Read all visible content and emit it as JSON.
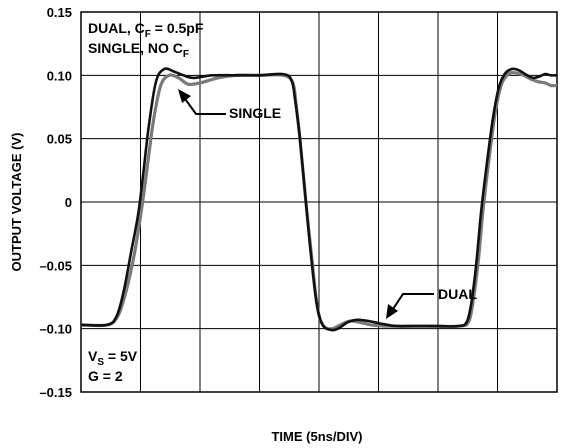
{
  "chart_data": {
    "type": "line",
    "title": "",
    "xlabel": "TIME (5ns/DIV)",
    "ylabel": "OUTPUT VOLTAGE (V)",
    "ylim": [
      -0.15,
      0.15
    ],
    "xlim": [
      0,
      40
    ],
    "x_unit_per_div": "5ns",
    "yticks": [
      "0.15",
      "0.10",
      "0.05",
      "0",
      "–0.05",
      "–0.10",
      "–0.15"
    ],
    "ytick_values": [
      0.15,
      0.1,
      0.05,
      0,
      -0.05,
      -0.1,
      -0.15
    ],
    "grid": true,
    "colors": {
      "dual": "#111111",
      "single": "#7a7a7a"
    },
    "series": [
      {
        "name": "DUAL",
        "x": [
          0,
          2.2,
          3.0,
          3.6,
          4.2,
          4.8,
          5.2,
          5.7,
          6.3,
          7.0,
          7.8,
          8.6,
          9.5,
          11,
          13,
          15,
          17,
          17.7,
          18.0,
          18.4,
          18.8,
          19.3,
          19.8,
          20.3,
          21.0,
          21.6,
          22.4,
          23.2,
          24.2,
          25.2,
          26.5,
          28,
          30,
          31.7,
          32.4,
          32.8,
          33.2,
          33.6,
          34.1,
          34.6,
          35.1,
          35.6,
          36.2,
          36.8,
          37.5,
          38.0,
          38.5,
          39.0,
          39.5,
          40
        ],
        "y": [
          -0.097,
          -0.097,
          -0.09,
          -0.07,
          -0.04,
          -0.01,
          0.02,
          0.06,
          0.095,
          0.105,
          0.103,
          0.1,
          0.098,
          0.1,
          0.1,
          0.1,
          0.101,
          0.096,
          0.08,
          0.05,
          0.01,
          -0.04,
          -0.08,
          -0.097,
          -0.101,
          -0.1,
          -0.095,
          -0.093,
          -0.094,
          -0.096,
          -0.098,
          -0.098,
          -0.098,
          -0.098,
          -0.095,
          -0.08,
          -0.05,
          -0.01,
          0.03,
          0.065,
          0.09,
          0.101,
          0.105,
          0.104,
          0.1,
          0.098,
          0.099,
          0.101,
          0.1,
          0.1
        ]
      },
      {
        "name": "SINGLE",
        "x": [
          0,
          2.2,
          3.1,
          3.8,
          4.5,
          5.1,
          5.6,
          6.1,
          6.7,
          7.4,
          8.2,
          9.0,
          10,
          11.5,
          13,
          15,
          17,
          17.8,
          18.1,
          18.5,
          18.9,
          19.4,
          19.9,
          20.4,
          21.1,
          21.8,
          22.6,
          23.4,
          24.4,
          25.6,
          27,
          29,
          31.8,
          32.6,
          33.0,
          33.4,
          33.8,
          34.3,
          34.8,
          35.3,
          35.9,
          36.5,
          37.2,
          37.8,
          38.4,
          39.0,
          39.5,
          40
        ],
        "y": [
          -0.097,
          -0.097,
          -0.09,
          -0.07,
          -0.04,
          -0.005,
          0.03,
          0.065,
          0.092,
          0.1,
          0.098,
          0.093,
          0.094,
          0.098,
          0.1,
          0.1,
          0.1,
          0.094,
          0.075,
          0.04,
          0.0,
          -0.045,
          -0.085,
          -0.098,
          -0.1,
          -0.097,
          -0.094,
          -0.095,
          -0.097,
          -0.098,
          -0.098,
          -0.098,
          -0.098,
          -0.094,
          -0.075,
          -0.045,
          -0.005,
          0.035,
          0.07,
          0.092,
          0.101,
          0.102,
          0.1,
          0.097,
          0.095,
          0.094,
          0.092,
          0.092
        ]
      }
    ],
    "annotations": {
      "topleft_line1_main": "DUAL, C",
      "topleft_line1_sub": "F",
      "topleft_line1_rest": " = 0.5pF",
      "topleft_line2_main": "SINGLE, NO C",
      "topleft_line2_sub": "F",
      "single_label": "SINGLE",
      "dual_label": "DUAL",
      "vs_main": "V",
      "vs_sub": "S",
      "vs_rest": " = 5V",
      "gain": "G = 2"
    }
  }
}
